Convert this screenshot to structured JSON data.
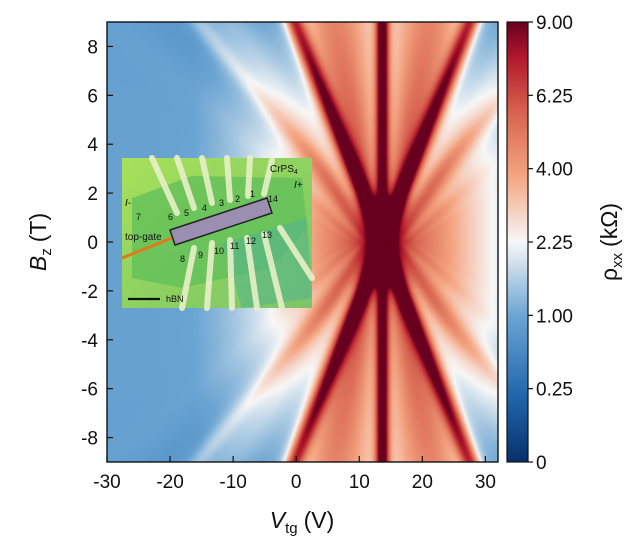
{
  "chart_data": {
    "type": "heatmap",
    "title": "",
    "x": {
      "symbol": "V",
      "subscript": "tg",
      "unit": "(V)",
      "lim": [
        -30,
        32
      ],
      "ticks": [
        -30,
        -20,
        -10,
        0,
        10,
        20,
        30
      ],
      "tick_labels": [
        "-30",
        "-20",
        "-10",
        "0",
        "10",
        "20",
        "30"
      ]
    },
    "y": {
      "symbol": "B",
      "subscript": "z",
      "unit": "(T)",
      "lim": [
        -9,
        9
      ],
      "ticks": [
        -8,
        -6,
        -4,
        -2,
        0,
        2,
        4,
        6,
        8
      ],
      "tick_labels": [
        "-8",
        "-6",
        "-4",
        "-2",
        "0",
        "2",
        "4",
        "6",
        "8"
      ]
    },
    "colorbar": {
      "symbol": "ρ",
      "subscript": "xx",
      "unit": "(kΩ)",
      "ticks": [
        0,
        0.25,
        1.0,
        2.25,
        4.0,
        6.25,
        9.0
      ],
      "tick_labels": [
        "0",
        "0.25",
        "1.00",
        "2.25",
        "4.00",
        "6.25",
        "9.00"
      ],
      "colors": [
        "#08306b",
        "#2166ac",
        "#6aa4d2",
        "#f7f7f7",
        "#f4a582",
        "#d6604d",
        "#b2182b",
        "#67001f"
      ]
    },
    "features": {
      "charge_neutrality_V": 13.7,
      "peak_rho_kOhm": 9.0,
      "background_rho_kOhm": 0.3,
      "crossing_B_T": 0,
      "fan_slope_V_per_T": 1.55
    },
    "inset": {
      "material_label": "CrPS",
      "material_subscript": "4",
      "gate_label": "top-gate",
      "substrate_label": "hBN",
      "current_in_label": "I-",
      "current_out_label": "I+",
      "contact_labels_top": [
        "6",
        "5",
        "4",
        "3",
        "2",
        "1"
      ],
      "contact_labels_bottom": [
        "8",
        "9",
        "10",
        "11",
        "12",
        "13"
      ],
      "contact_label_end": "14",
      "contact_label_start": "7"
    }
  }
}
